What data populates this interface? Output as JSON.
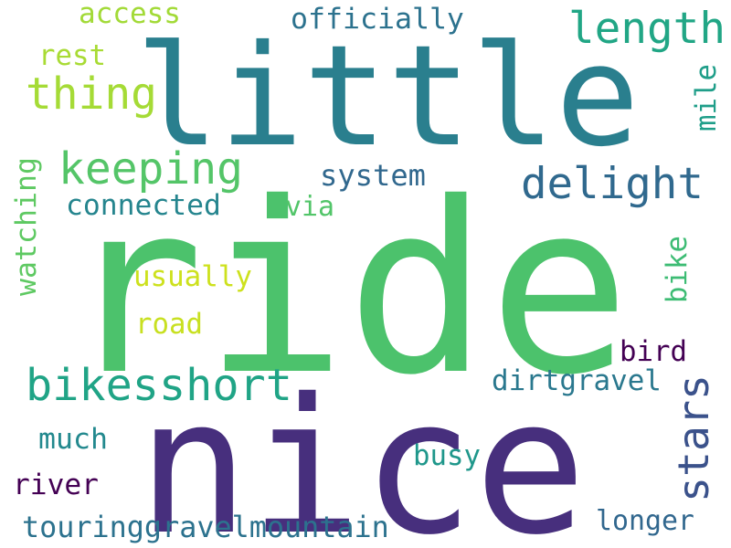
{
  "words": [
    {
      "id": "ride",
      "text": "ride",
      "color": "#4cc26c",
      "orientation": "horizontal"
    },
    {
      "id": "little",
      "text": "little",
      "color": "#2a7f8e",
      "orientation": "horizontal"
    },
    {
      "id": "nice",
      "text": "nice",
      "color": "#472f7d",
      "orientation": "horizontal"
    },
    {
      "id": "length",
      "text": "length",
      "color": "#21a685",
      "orientation": "horizontal"
    },
    {
      "id": "thing",
      "text": "thing",
      "color": "#a5db36",
      "orientation": "horizontal"
    },
    {
      "id": "keeping",
      "text": "keeping",
      "color": "#54c568",
      "orientation": "horizontal"
    },
    {
      "id": "delight",
      "text": "delight",
      "color": "#30698e",
      "orientation": "horizontal"
    },
    {
      "id": "bikesshort",
      "text": "bikesshort",
      "color": "#20a486",
      "orientation": "horizontal"
    },
    {
      "id": "stars",
      "text": "stars",
      "color": "#3b528b",
      "orientation": "vertical"
    },
    {
      "id": "officially",
      "text": "officially",
      "color": "#2c728e",
      "orientation": "horizontal"
    },
    {
      "id": "access",
      "text": "access",
      "color": "#a2da37",
      "orientation": "horizontal"
    },
    {
      "id": "rest",
      "text": "rest",
      "color": "#a8db34",
      "orientation": "horizontal"
    },
    {
      "id": "mile",
      "text": "mile",
      "color": "#1f9e89",
      "orientation": "vertical"
    },
    {
      "id": "system",
      "text": "system",
      "color": "#31688e",
      "orientation": "horizontal"
    },
    {
      "id": "connected",
      "text": "connected",
      "color": "#25858e",
      "orientation": "horizontal"
    },
    {
      "id": "via",
      "text": "via",
      "color": "#52c569",
      "orientation": "horizontal"
    },
    {
      "id": "watching",
      "text": "watching",
      "color": "#5ec962",
      "orientation": "vertical"
    },
    {
      "id": "usually",
      "text": "usually",
      "color": "#cde11d",
      "orientation": "horizontal"
    },
    {
      "id": "road",
      "text": "road",
      "color": "#c8e020",
      "orientation": "horizontal"
    },
    {
      "id": "bike",
      "text": "bike",
      "color": "#3dbc74",
      "orientation": "vertical"
    },
    {
      "id": "bird",
      "text": "bird",
      "color": "#440154",
      "orientation": "horizontal"
    },
    {
      "id": "dirtgravel",
      "text": "dirtgravel",
      "color": "#2a788e",
      "orientation": "horizontal"
    },
    {
      "id": "much",
      "text": "much",
      "color": "#23898e",
      "orientation": "horizontal"
    },
    {
      "id": "busy",
      "text": "busy",
      "color": "#1f978b",
      "orientation": "horizontal"
    },
    {
      "id": "river",
      "text": "river",
      "color": "#440154",
      "orientation": "horizontal"
    },
    {
      "id": "longer",
      "text": "longer",
      "color": "#31678e",
      "orientation": "horizontal"
    },
    {
      "id": "touringgravelmountain",
      "text": "touringgravelmountain",
      "color": "#2c728e",
      "orientation": "horizontal"
    }
  ]
}
